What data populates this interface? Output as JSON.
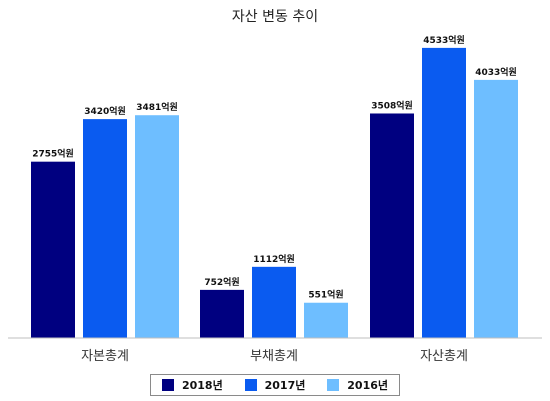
{
  "chart_data": {
    "type": "bar",
    "title": "자산 변동 추이",
    "categories": [
      "자본총계",
      "부채총계",
      "자산총계"
    ],
    "unit_suffix": "억원",
    "series": [
      {
        "name": "2018년",
        "color": "#000080",
        "values": [
          2755,
          752,
          3508
        ]
      },
      {
        "name": "2017년",
        "color": "#0A5BF0",
        "values": [
          3420,
          1112,
          4533
        ]
      },
      {
        "name": "2016년",
        "color": "#6EBEFF",
        "values": [
          3481,
          551,
          4033
        ]
      }
    ],
    "ylim": [
      0,
      5000
    ],
    "grid": false,
    "legend_position": "bottom"
  }
}
